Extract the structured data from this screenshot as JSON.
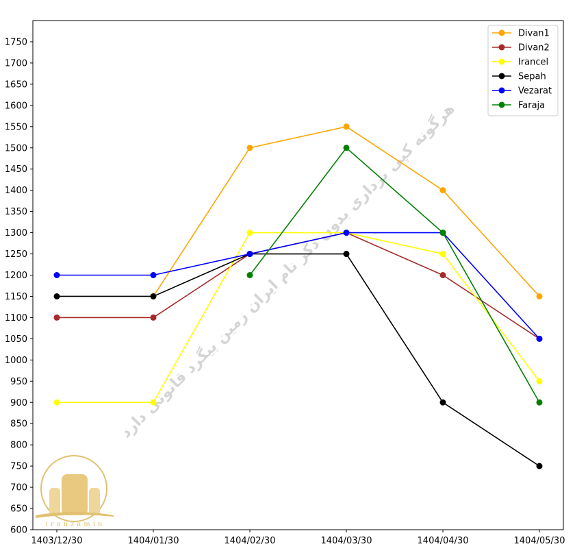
{
  "chart_data": {
    "type": "line",
    "title": "",
    "xlabel": "",
    "ylabel": "",
    "categories": [
      "1403/12/30",
      "1404/01/30",
      "1404/02/30",
      "1404/03/30",
      "1404/04/30",
      "1404/05/30"
    ],
    "ylim": [
      600,
      1800
    ],
    "yticks": [
      600,
      650,
      700,
      750,
      800,
      850,
      900,
      950,
      1000,
      1050,
      1100,
      1150,
      1200,
      1250,
      1300,
      1350,
      1400,
      1450,
      1500,
      1550,
      1600,
      1650,
      1700,
      1750
    ],
    "grid": false,
    "legend_position": "top-right",
    "series": [
      {
        "name": "Divan1",
        "color": "#ffa500",
        "values": [
          null,
          1150,
          1500,
          1550,
          1400,
          1150
        ]
      },
      {
        "name": "Divan2",
        "color": "#a52a2a",
        "values": [
          1100,
          1100,
          1250,
          1300,
          1200,
          1050
        ]
      },
      {
        "name": "Irancel",
        "color": "#ffff00",
        "values": [
          900,
          900,
          1300,
          1300,
          1250,
          950
        ]
      },
      {
        "name": "Sepah",
        "color": "#000000",
        "values": [
          1150,
          1150,
          1250,
          1250,
          900,
          750
        ]
      },
      {
        "name": "Vezarat",
        "color": "#0000ff",
        "values": [
          1200,
          1200,
          1250,
          1300,
          1300,
          1050
        ]
      },
      {
        "name": "Faraja",
        "color": "#008000",
        "values": [
          null,
          null,
          1200,
          1500,
          1300,
          900
        ]
      }
    ]
  },
  "watermark": {
    "text": "هرگونه کپی برداری بدون ذکر نام ایران زمین پیگرد قانونی دارد"
  },
  "logo": {
    "text": "iranzamin",
    "color": "#e2c072"
  }
}
